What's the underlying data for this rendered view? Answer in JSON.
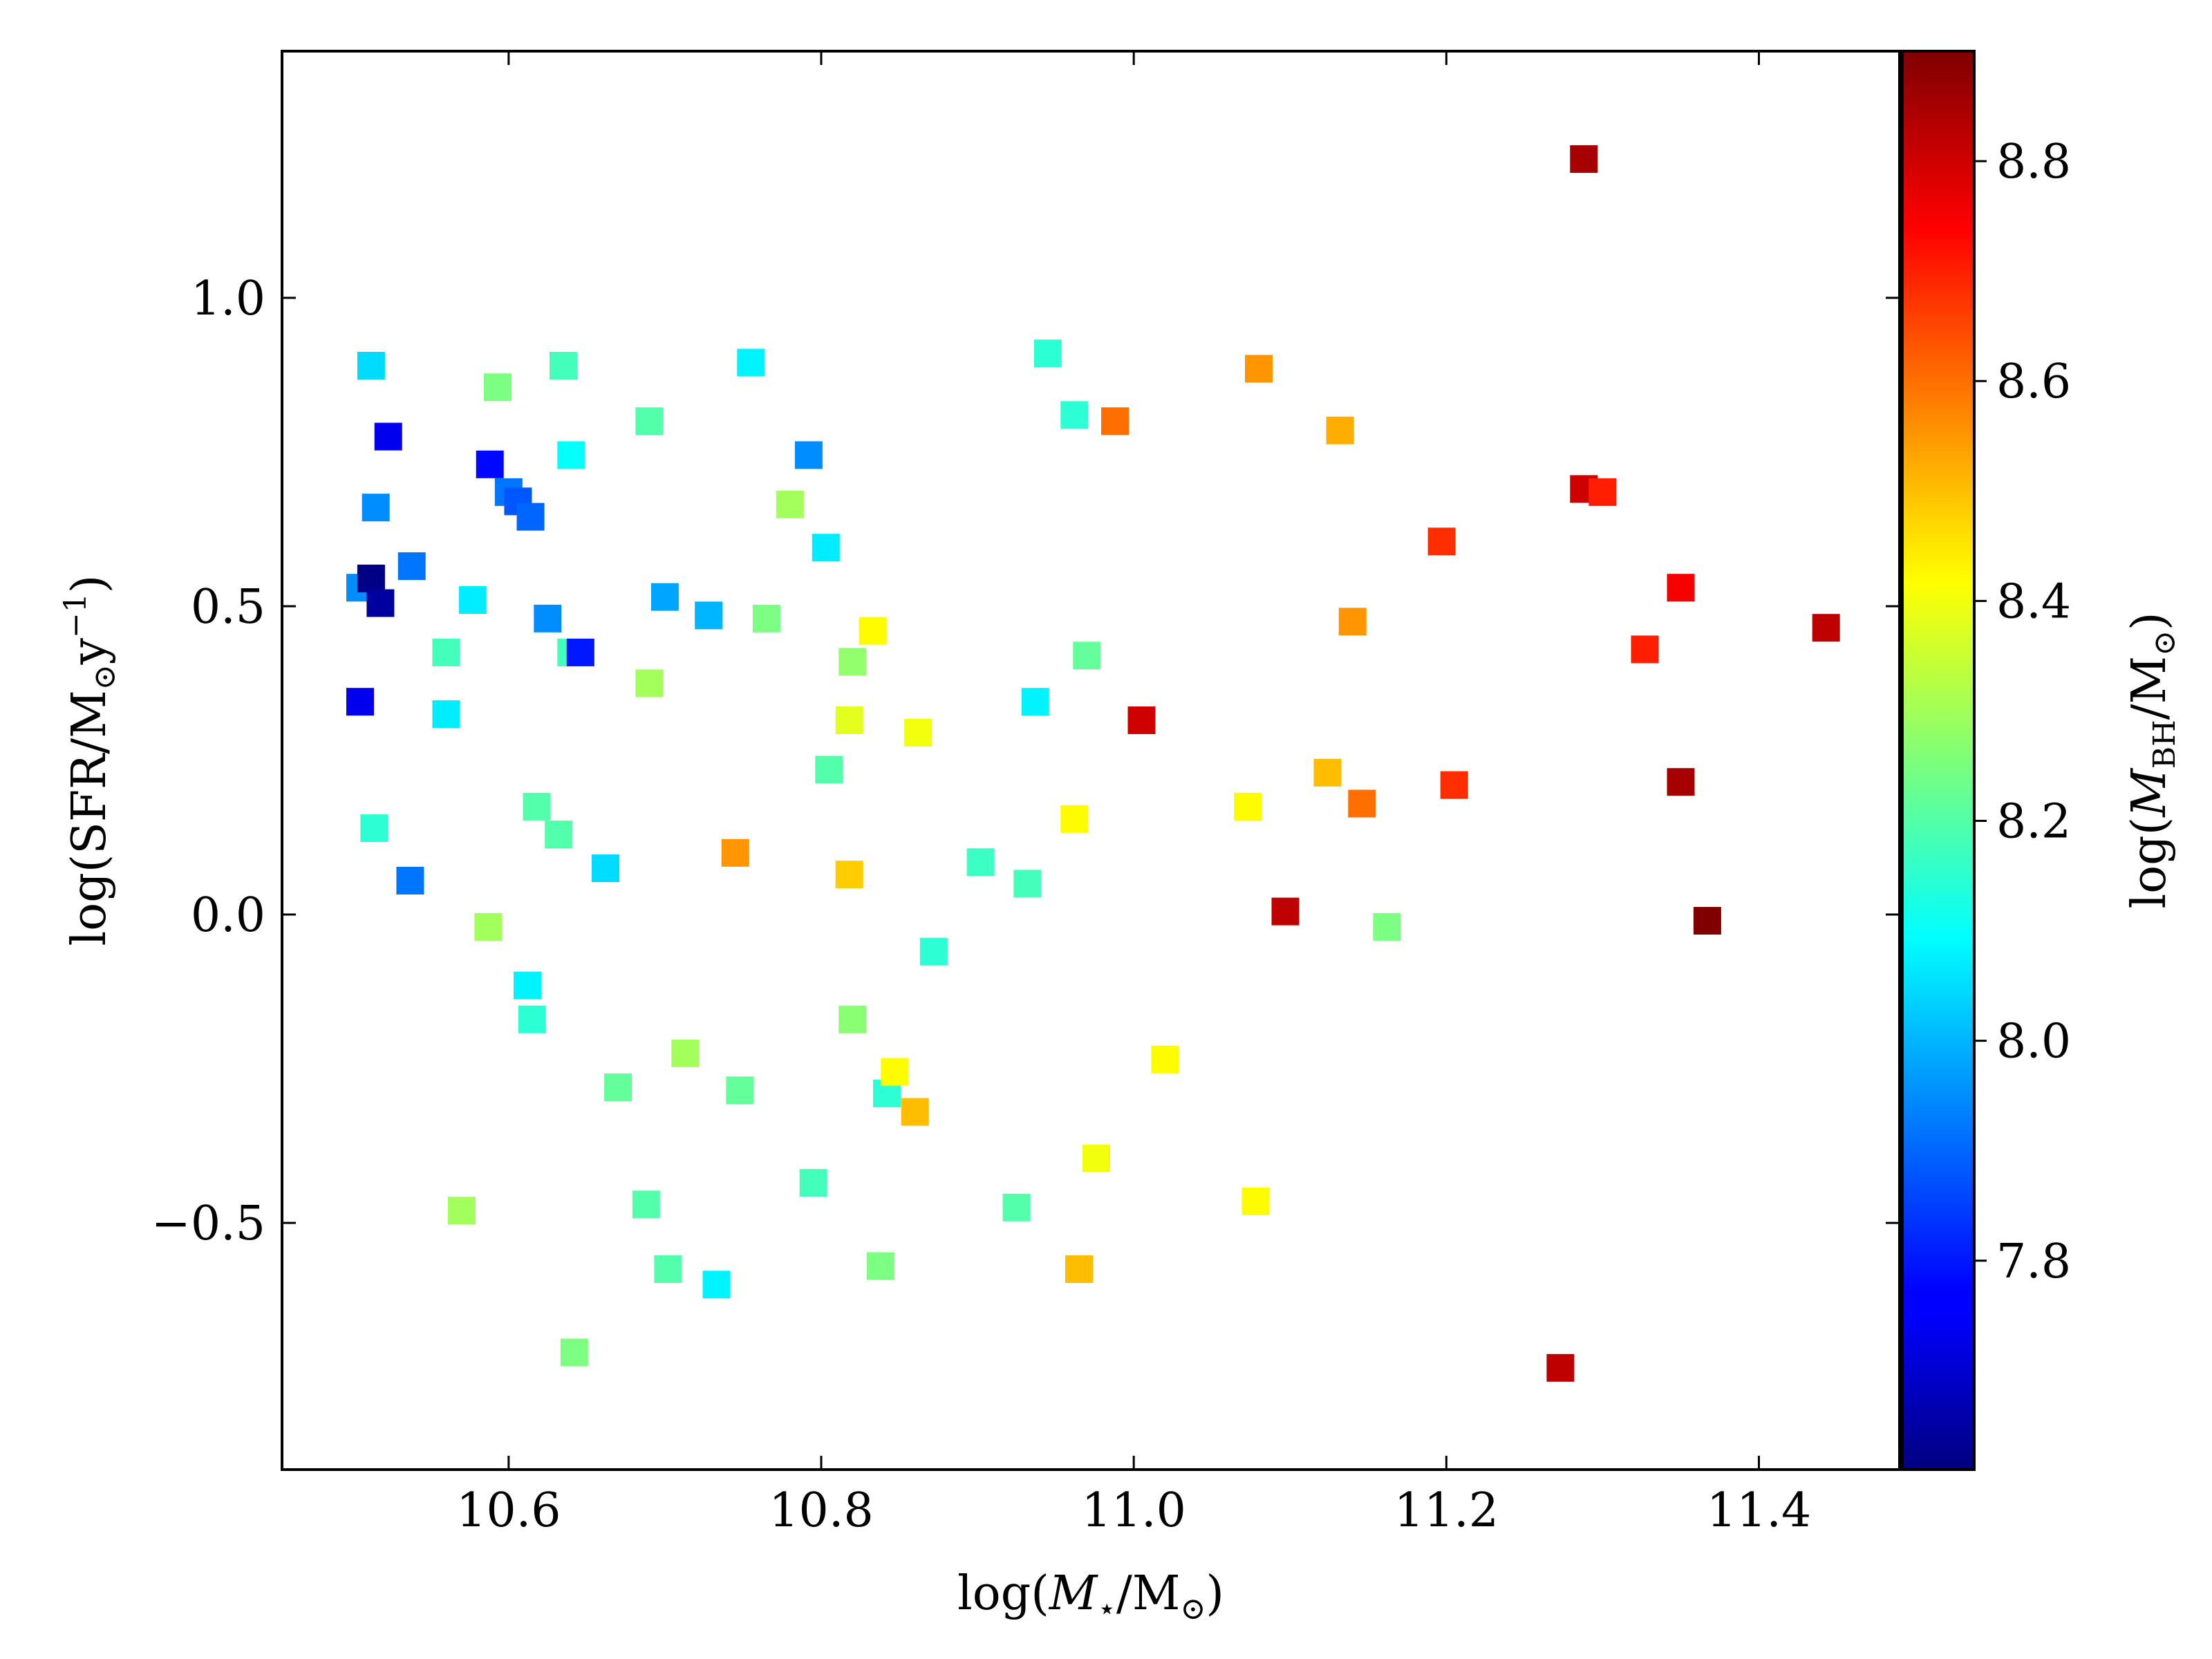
{
  "chart_data": {
    "type": "scatter",
    "marker": "square",
    "title": "",
    "xlabel": {
      "pre": "log(",
      "italic": "M",
      "sub": "⋆",
      "post": "/M",
      "sun": "⊙",
      "close": ")"
    },
    "ylabel": {
      "pre": "log(SFR/M",
      "sun": "⊙",
      "mid": "y",
      "sup": "−1",
      "close": ")"
    },
    "colorbar_label": {
      "pre": "log(",
      "italic": "M",
      "sub": "BH",
      "post": "/M",
      "sun": "⊙",
      "close": ")"
    },
    "xlim": [
      10.455,
      11.49
    ],
    "ylim": [
      -0.9,
      1.4
    ],
    "clim": [
      7.61,
      8.9
    ],
    "colormap": "jet",
    "xticks": [
      10.6,
      10.8,
      11.0,
      11.2,
      11.4
    ],
    "xtick_labels": [
      "10.6",
      "10.8",
      "11.0",
      "11.2",
      "11.4"
    ],
    "yticks": [
      -0.5,
      0.0,
      0.5,
      1.0
    ],
    "ytick_labels": [
      "−0.5",
      "0.0",
      "0.5",
      "1.0"
    ],
    "cticks": [
      7.8,
      8.0,
      8.2,
      8.4,
      8.6,
      8.8
    ],
    "ctick_labels": [
      "7.8",
      "8.0",
      "8.2",
      "8.4",
      "8.6",
      "8.8"
    ],
    "grid": false,
    "legend": "none",
    "points": [
      {
        "x": 10.512,
        "y": 0.89,
        "c": 8.05
      },
      {
        "x": 10.523,
        "y": 0.775,
        "c": 7.75
      },
      {
        "x": 10.515,
        "y": 0.66,
        "c": 7.95
      },
      {
        "x": 10.505,
        "y": 0.53,
        "c": 7.95
      },
      {
        "x": 10.512,
        "y": 0.545,
        "c": 7.62
      },
      {
        "x": 10.518,
        "y": 0.505,
        "c": 7.65
      },
      {
        "x": 10.538,
        "y": 0.565,
        "c": 7.92
      },
      {
        "x": 10.505,
        "y": 0.345,
        "c": 7.75
      },
      {
        "x": 10.514,
        "y": 0.14,
        "c": 8.15
      },
      {
        "x": 10.537,
        "y": 0.055,
        "c": 7.92
      },
      {
        "x": 10.56,
        "y": 0.425,
        "c": 8.18
      },
      {
        "x": 10.56,
        "y": 0.325,
        "c": 8.07
      },
      {
        "x": 10.577,
        "y": 0.51,
        "c": 8.07
      },
      {
        "x": 10.588,
        "y": 0.73,
        "c": 7.78
      },
      {
        "x": 10.593,
        "y": 0.855,
        "c": 8.25
      },
      {
        "x": 10.6,
        "y": 0.685,
        "c": 7.92
      },
      {
        "x": 10.606,
        "y": 0.67,
        "c": 7.88
      },
      {
        "x": 10.614,
        "y": 0.645,
        "c": 7.9
      },
      {
        "x": 10.625,
        "y": 0.48,
        "c": 7.95
      },
      {
        "x": 10.635,
        "y": 0.89,
        "c": 8.18
      },
      {
        "x": 10.64,
        "y": 0.745,
        "c": 8.1
      },
      {
        "x": 10.64,
        "y": 0.425,
        "c": 8.18
      },
      {
        "x": 10.646,
        "y": 0.425,
        "c": 7.8
      },
      {
        "x": 10.618,
        "y": 0.175,
        "c": 8.2
      },
      {
        "x": 10.632,
        "y": 0.13,
        "c": 8.2
      },
      {
        "x": 10.662,
        "y": 0.075,
        "c": 8.05
      },
      {
        "x": 10.587,
        "y": -0.02,
        "c": 8.3
      },
      {
        "x": 10.612,
        "y": -0.115,
        "c": 8.08
      },
      {
        "x": 10.615,
        "y": -0.17,
        "c": 8.15
      },
      {
        "x": 10.67,
        "y": -0.28,
        "c": 8.22
      },
      {
        "x": 10.57,
        "y": -0.48,
        "c": 8.3
      },
      {
        "x": 10.642,
        "y": -0.71,
        "c": 8.25
      },
      {
        "x": 10.69,
        "y": 0.8,
        "c": 8.2
      },
      {
        "x": 10.7,
        "y": 0.515,
        "c": 7.98
      },
      {
        "x": 10.69,
        "y": 0.375,
        "c": 8.3
      },
      {
        "x": 10.728,
        "y": 0.485,
        "c": 8.0
      },
      {
        "x": 10.713,
        "y": -0.225,
        "c": 8.3
      },
      {
        "x": 10.688,
        "y": -0.47,
        "c": 8.2
      },
      {
        "x": 10.702,
        "y": -0.575,
        "c": 8.2
      },
      {
        "x": 10.733,
        "y": -0.6,
        "c": 8.08
      },
      {
        "x": 10.748,
        "y": -0.285,
        "c": 8.22
      },
      {
        "x": 10.755,
        "y": 0.895,
        "c": 8.08
      },
      {
        "x": 10.765,
        "y": 0.48,
        "c": 8.25
      },
      {
        "x": 10.745,
        "y": 0.1,
        "c": 8.55
      },
      {
        "x": 10.78,
        "y": 0.665,
        "c": 8.3
      },
      {
        "x": 10.792,
        "y": 0.745,
        "c": 7.95
      },
      {
        "x": 10.803,
        "y": 0.595,
        "c": 8.07
      },
      {
        "x": 10.805,
        "y": 0.235,
        "c": 8.2
      },
      {
        "x": 10.795,
        "y": -0.435,
        "c": 8.18
      },
      {
        "x": 10.82,
        "y": 0.41,
        "c": 8.28
      },
      {
        "x": 10.818,
        "y": 0.315,
        "c": 8.38
      },
      {
        "x": 10.833,
        "y": 0.46,
        "c": 8.42
      },
      {
        "x": 10.818,
        "y": 0.065,
        "c": 8.48
      },
      {
        "x": 10.82,
        "y": -0.17,
        "c": 8.27
      },
      {
        "x": 10.842,
        "y": -0.29,
        "c": 8.15
      },
      {
        "x": 10.847,
        "y": -0.255,
        "c": 8.42
      },
      {
        "x": 10.86,
        "y": -0.32,
        "c": 8.5
      },
      {
        "x": 10.838,
        "y": -0.57,
        "c": 8.25
      },
      {
        "x": 10.862,
        "y": 0.295,
        "c": 8.4
      },
      {
        "x": 10.872,
        "y": -0.06,
        "c": 8.15
      },
      {
        "x": 10.902,
        "y": 0.085,
        "c": 8.17
      },
      {
        "x": 10.925,
        "y": -0.475,
        "c": 8.2
      },
      {
        "x": 10.932,
        "y": 0.05,
        "c": 8.18
      },
      {
        "x": 10.937,
        "y": 0.345,
        "c": 8.08
      },
      {
        "x": 10.945,
        "y": 0.91,
        "c": 8.15
      },
      {
        "x": 10.962,
        "y": 0.81,
        "c": 8.15
      },
      {
        "x": 10.97,
        "y": 0.42,
        "c": 8.22
      },
      {
        "x": 10.962,
        "y": 0.155,
        "c": 8.42
      },
      {
        "x": 10.976,
        "y": -0.395,
        "c": 8.4
      },
      {
        "x": 10.965,
        "y": -0.575,
        "c": 8.5
      },
      {
        "x": 10.988,
        "y": 0.8,
        "c": 8.6
      },
      {
        "x": 11.005,
        "y": 0.315,
        "c": 8.8
      },
      {
        "x": 11.02,
        "y": -0.235,
        "c": 8.42
      },
      {
        "x": 11.073,
        "y": 0.175,
        "c": 8.42
      },
      {
        "x": 11.078,
        "y": -0.465,
        "c": 8.42
      },
      {
        "x": 11.08,
        "y": 0.885,
        "c": 8.55
      },
      {
        "x": 11.097,
        "y": 0.005,
        "c": 8.82
      },
      {
        "x": 11.124,
        "y": 0.23,
        "c": 8.5
      },
      {
        "x": 11.132,
        "y": 0.785,
        "c": 8.52
      },
      {
        "x": 11.14,
        "y": 0.475,
        "c": 8.55
      },
      {
        "x": 11.146,
        "y": 0.18,
        "c": 8.6
      },
      {
        "x": 11.162,
        "y": -0.02,
        "c": 8.25
      },
      {
        "x": 11.197,
        "y": 0.605,
        "c": 8.68
      },
      {
        "x": 11.205,
        "y": 0.21,
        "c": 8.68
      },
      {
        "x": 11.273,
        "y": -0.735,
        "c": 8.82
      },
      {
        "x": 11.288,
        "y": 1.225,
        "c": 8.85
      },
      {
        "x": 11.288,
        "y": 0.69,
        "c": 8.8
      },
      {
        "x": 11.3,
        "y": 0.685,
        "c": 8.7
      },
      {
        "x": 11.327,
        "y": 0.43,
        "c": 8.7
      },
      {
        "x": 11.35,
        "y": 0.53,
        "c": 8.75
      },
      {
        "x": 11.35,
        "y": 0.215,
        "c": 8.85
      },
      {
        "x": 11.367,
        "y": -0.01,
        "c": 8.9
      },
      {
        "x": 11.443,
        "y": 0.465,
        "c": 8.82
      }
    ]
  }
}
